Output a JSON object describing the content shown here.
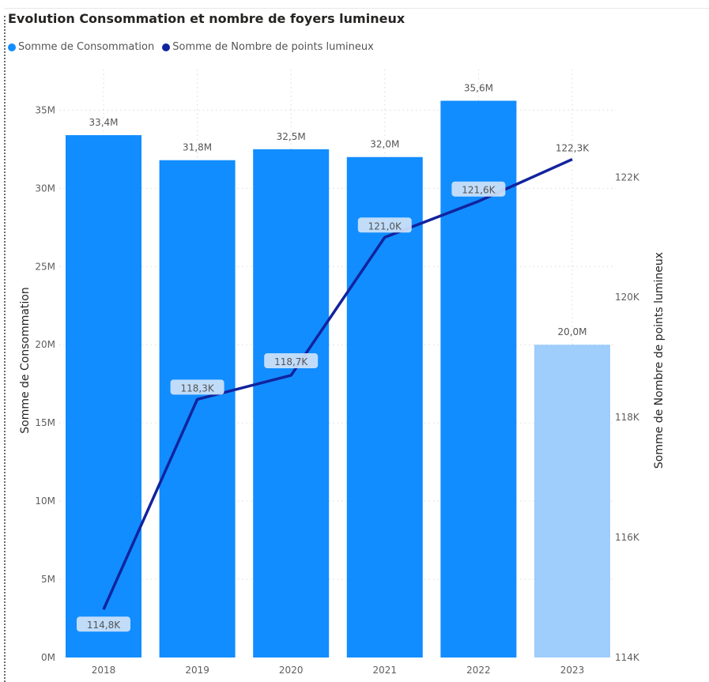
{
  "title": "Evolution Consommation et nombre de foyers lumineux",
  "colors": {
    "bar": "#118dff",
    "bar_light": "#9fcdfc",
    "line": "#12239e",
    "grid": "#d9d9d9",
    "label_bg": "#cfe3f8"
  },
  "legend": [
    {
      "label": "Somme de Consommation",
      "color": "#118dff"
    },
    {
      "label": "Somme de Nombre de points lumineux",
      "color": "#12239e"
    }
  ],
  "chart_data": {
    "type": "bar",
    "categories": [
      "2018",
      "2019",
      "2020",
      "2021",
      "2022",
      "2023"
    ],
    "series": [
      {
        "name": "Somme de Consommation",
        "type": "bar",
        "axis": "left",
        "values": [
          33.4,
          31.8,
          32.5,
          32.0,
          35.6,
          20.0
        ],
        "labels": [
          "33,4M",
          "31,8M",
          "32,5M",
          "32,0M",
          "35,6M",
          "20,0M"
        ]
      },
      {
        "name": "Somme de Nombre de points lumineux",
        "type": "line",
        "axis": "right",
        "values": [
          114.8,
          118.3,
          118.7,
          121.0,
          121.6,
          122.3
        ],
        "labels": [
          "114,8K",
          "118,3K",
          "118,7K",
          "121,0K",
          "121,6K",
          "122,3K"
        ]
      }
    ],
    "y_left": {
      "label": "Somme de Consommation",
      "range": [
        0,
        38
      ],
      "ticks": [
        0,
        5,
        10,
        15,
        20,
        25,
        30,
        35
      ],
      "tick_labels": [
        "0M",
        "5M",
        "10M",
        "15M",
        "20M",
        "25M",
        "30M",
        "35M"
      ]
    },
    "y_right": {
      "label": "Somme de Nombre de points lumineux",
      "range": [
        114,
        123.9
      ],
      "ticks": [
        114,
        116,
        118,
        120,
        122
      ],
      "tick_labels": [
        "114K",
        "116K",
        "118K",
        "120K",
        "122K"
      ]
    },
    "highlighted_bar": "2023",
    "grid": true,
    "legend_position": "top-left"
  }
}
